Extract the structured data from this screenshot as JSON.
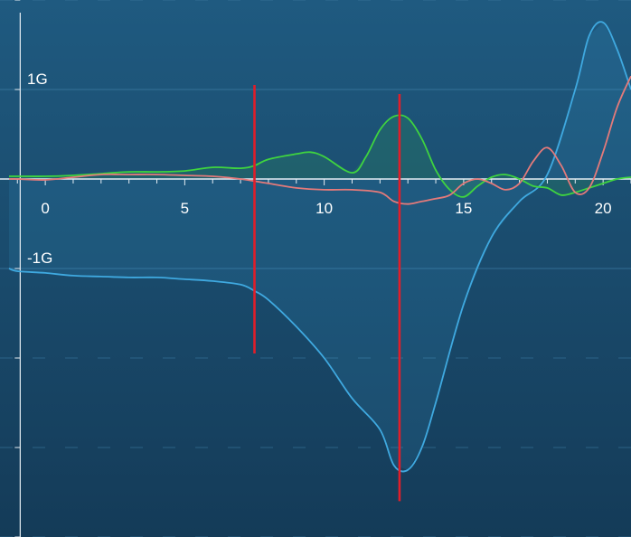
{
  "chart_data": {
    "type": "line",
    "x_ticks": [
      0,
      5,
      10,
      15,
      20
    ],
    "x_tick_labels": [
      "0",
      "5",
      "10",
      "15",
      "20"
    ],
    "y_labels": [
      {
        "value": 1,
        "label": "1G"
      },
      {
        "value": -1,
        "label": "-1G"
      }
    ],
    "xlim": [
      -1.3,
      21
    ],
    "ylim": [
      -4.0,
      2.0
    ],
    "grid": true,
    "colors": {
      "background_top": "#1f5a80",
      "background_bottom": "#143b58",
      "grid": "#3f7ea6",
      "axis": "#e6eef4",
      "marker": "#e01e2a"
    },
    "markers": [
      {
        "x": 7.5,
        "y_from": 1.05,
        "y_to": -1.95
      },
      {
        "x": 12.7,
        "y_from": 0.95,
        "y_to": -3.6
      }
    ],
    "series": [
      {
        "color": "#3fa9e0",
        "fill": true,
        "x": [
          -1.3,
          -1.0,
          0,
          1,
          2,
          3,
          4,
          5,
          6,
          7,
          7.5,
          8,
          9,
          10,
          11,
          12,
          12.5,
          13,
          13.5,
          14,
          15,
          16,
          17,
          18,
          19,
          19.5,
          20,
          20.5,
          21
        ],
        "y": [
          -1.0,
          -1.03,
          -1.05,
          -1.08,
          -1.09,
          -1.1,
          -1.1,
          -1.12,
          -1.14,
          -1.18,
          -1.25,
          -1.35,
          -1.65,
          -2.0,
          -2.45,
          -2.8,
          -3.2,
          -3.25,
          -3.0,
          -2.5,
          -1.4,
          -0.65,
          -0.25,
          0.05,
          1.0,
          1.6,
          1.75,
          1.45,
          1.0
        ]
      },
      {
        "color": "#3fd43f",
        "fill": true,
        "x": [
          -1.3,
          -1.0,
          0,
          1,
          2,
          3,
          4,
          5,
          6,
          7,
          7.5,
          8,
          9,
          9.5,
          10,
          11,
          11.5,
          12,
          12.5,
          13,
          13.5,
          14,
          14.5,
          15,
          15.5,
          16,
          16.5,
          17,
          17.5,
          18,
          18.5,
          19,
          19.5,
          20,
          20.5,
          21
        ],
        "y": [
          0.03,
          0.03,
          0.03,
          0.04,
          0.06,
          0.08,
          0.08,
          0.09,
          0.13,
          0.12,
          0.15,
          0.22,
          0.28,
          0.3,
          0.25,
          0.07,
          0.25,
          0.55,
          0.7,
          0.68,
          0.45,
          0.1,
          -0.12,
          -0.2,
          -0.08,
          0.02,
          0.05,
          0.0,
          -0.08,
          -0.1,
          -0.18,
          -0.15,
          -0.1,
          -0.05,
          0.0,
          0.02
        ]
      },
      {
        "color": "#e47a7a",
        "fill": false,
        "x": [
          -1.3,
          -1.0,
          0,
          1,
          2,
          3,
          4,
          5,
          6,
          7,
          8,
          9,
          10,
          11,
          12,
          12.5,
          13,
          13.5,
          14,
          14.5,
          15,
          15.5,
          16,
          16.5,
          17,
          17.5,
          18,
          18.5,
          19,
          19.5,
          20,
          20.5,
          21
        ],
        "y": [
          0.0,
          0.0,
          -0.01,
          0.02,
          0.05,
          0.05,
          0.05,
          0.04,
          0.03,
          0.0,
          -0.05,
          -0.1,
          -0.12,
          -0.12,
          -0.15,
          -0.25,
          -0.28,
          -0.25,
          -0.22,
          -0.18,
          -0.05,
          0.0,
          -0.05,
          -0.12,
          -0.05,
          0.2,
          0.35,
          0.15,
          -0.15,
          -0.1,
          0.3,
          0.8,
          1.15
        ]
      }
    ]
  }
}
